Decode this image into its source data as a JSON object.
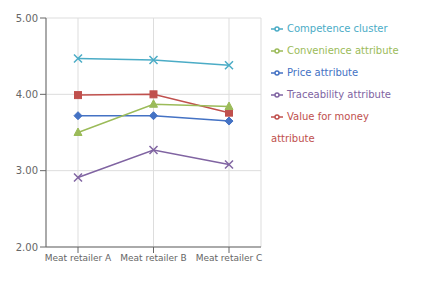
{
  "chart_data": {
    "type": "line",
    "categories": [
      "Meat retailer A",
      "Meat retailer B",
      "Meat retailer C"
    ],
    "series": [
      {
        "name": "Price attribute",
        "color": "#4472C4",
        "marker": "diamond",
        "values": [
          3.72,
          3.72,
          3.65
        ]
      },
      {
        "name": "Value for money attribute",
        "color": "#C0504D",
        "marker": "square",
        "values": [
          3.99,
          4.0,
          3.76
        ]
      },
      {
        "name": "Convenience attribute",
        "color": "#9BBB59",
        "marker": "triangle",
        "values": [
          3.5,
          3.87,
          3.84
        ]
      },
      {
        "name": "Traceability attribute",
        "color": "#8064A2",
        "marker": "x",
        "values": [
          2.91,
          3.27,
          3.08
        ]
      },
      {
        "name": "Competence cluster",
        "color": "#4BACC6",
        "marker": "x",
        "values": [
          4.47,
          4.45,
          4.38
        ]
      }
    ],
    "ylim": [
      2.0,
      5.0
    ],
    "yticks": [
      {
        "value": 2,
        "label": "2.00"
      },
      {
        "value": 3,
        "label": "3.00"
      },
      {
        "value": 4,
        "label": "4.00"
      },
      {
        "value": 5,
        "label": "5.00"
      }
    ],
    "grid": true,
    "legend": "right"
  }
}
